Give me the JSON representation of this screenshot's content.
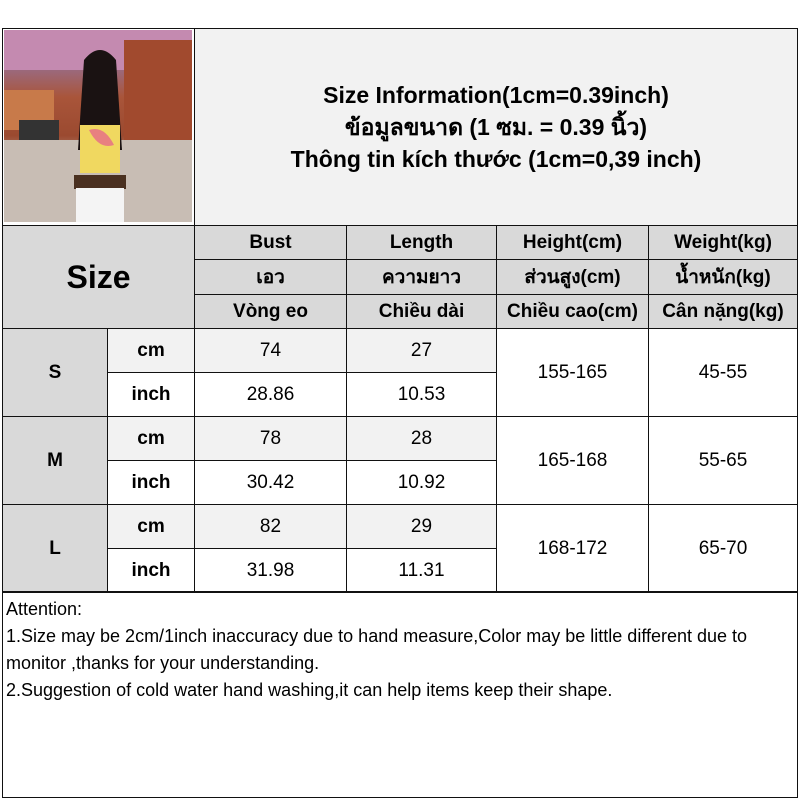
{
  "title": {
    "line1": "Size Information(1cm=0.39inch)",
    "line2": "ข้อมูลขนาด (1 ซม. = 0.39 นิ้ว)",
    "line3": "Thông tin kích thước (1cm=0,39 inch)"
  },
  "size_label": "Size",
  "headers": [
    {
      "en": "Bust",
      "th": "เอว",
      "vi": "Vòng eo"
    },
    {
      "en": "Length",
      "th": "ความยาว",
      "vi": "Chiều dài"
    },
    {
      "en": "Height(cm)",
      "th": "ส่วนสูง(cm)",
      "vi": "Chiều cao(cm)"
    },
    {
      "en": "Weight(kg)",
      "th": "น้ำหนัก(kg)",
      "vi": "Cân nặng(kg)"
    }
  ],
  "units": {
    "cm": "cm",
    "inch": "inch"
  },
  "rows": [
    {
      "size": "S",
      "bust_cm": "74",
      "bust_inch": "28.86",
      "length_cm": "27",
      "length_inch": "10.53",
      "height": "155-165",
      "weight": "45-55"
    },
    {
      "size": "M",
      "bust_cm": "78",
      "bust_inch": "30.42",
      "length_cm": "28",
      "length_inch": "10.92",
      "height": "165-168",
      "weight": "55-65"
    },
    {
      "size": "L",
      "bust_cm": "82",
      "bust_inch": "31.98",
      "length_cm": "29",
      "length_inch": "11.31",
      "height": "168-172",
      "weight": "65-70"
    }
  ],
  "notes": {
    "heading": "Attention:",
    "items": [
      "1.Size may be 2cm/1inch inaccuracy due to hand measure,Color may be little different due to monitor ,thanks for your understanding.",
      "2.Suggestion of cold water hand washing,it can help items keep their shape."
    ]
  }
}
